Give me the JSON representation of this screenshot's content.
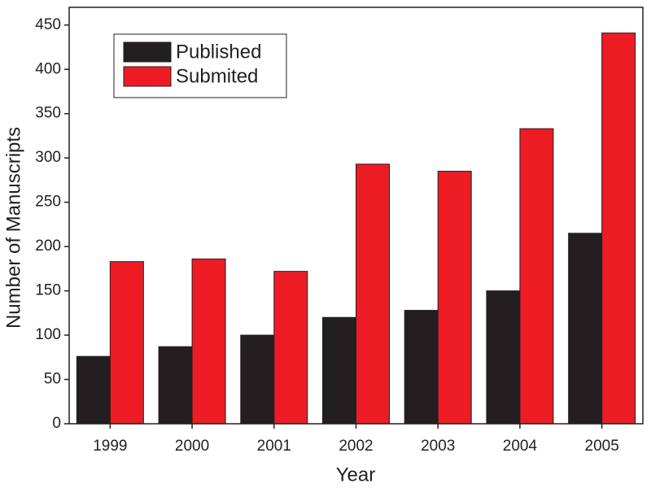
{
  "chart_data": {
    "type": "grouped_bar",
    "x_label": "Year",
    "y_label": "Number of Manuscripts",
    "categories": [
      "1999",
      "2000",
      "2001",
      "2002",
      "2003",
      "2004",
      "2005"
    ],
    "series": [
      {
        "name": "Published",
        "color": "#231f20",
        "values": [
          76,
          87,
          100,
          120,
          128,
          150,
          215
        ]
      },
      {
        "name": "Submited",
        "color": "#ed1c24",
        "values": [
          183,
          186,
          172,
          293,
          285,
          333,
          441
        ]
      }
    ],
    "ylim": [
      0,
      470
    ],
    "yticks": [
      0,
      50,
      100,
      150,
      200,
      250,
      300,
      350,
      400,
      450
    ],
    "legend": "upper-left"
  }
}
